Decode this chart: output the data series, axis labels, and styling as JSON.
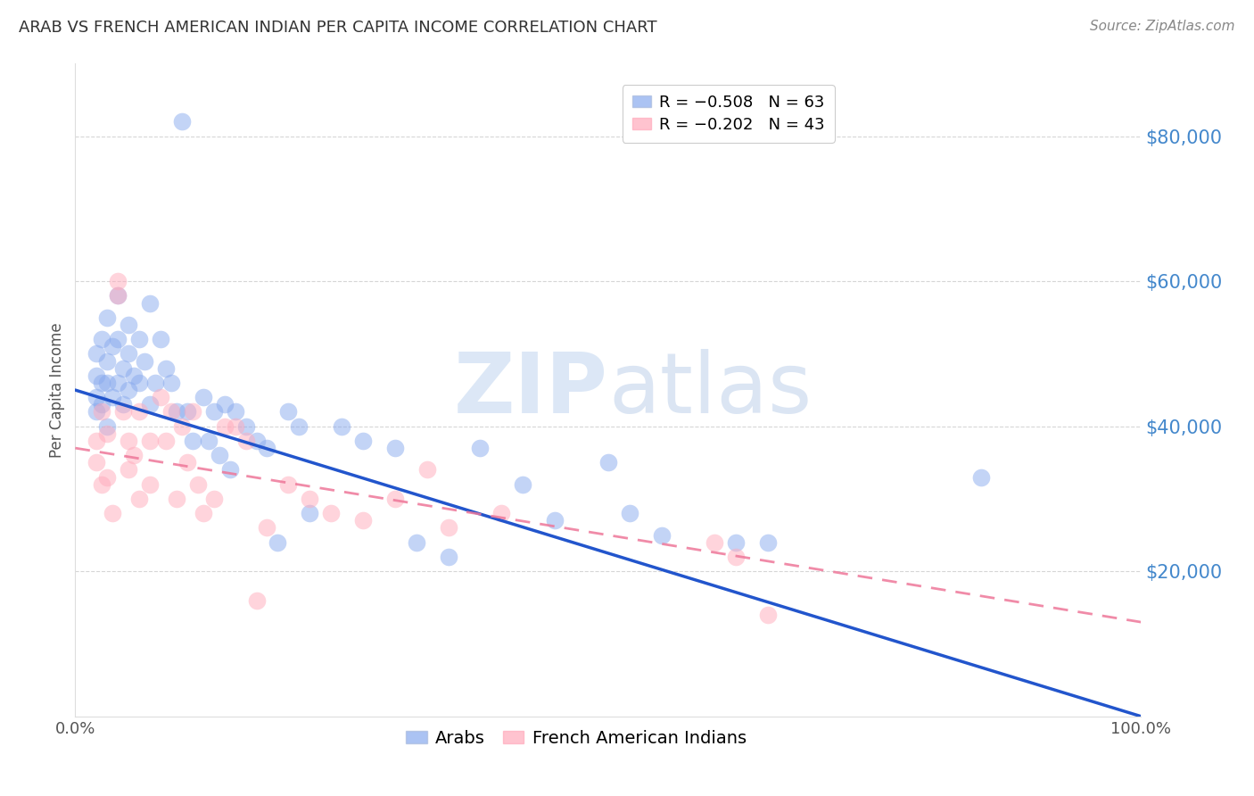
{
  "title": "ARAB VS FRENCH AMERICAN INDIAN PER CAPITA INCOME CORRELATION CHART",
  "source": "Source: ZipAtlas.com",
  "ylabel": "Per Capita Income",
  "ytick_labels": [
    "$20,000",
    "$40,000",
    "$60,000",
    "$80,000"
  ],
  "ytick_values": [
    20000,
    40000,
    60000,
    80000
  ],
  "ylim": [
    0,
    90000
  ],
  "xlim": [
    0.0,
    1.0
  ],
  "watermark_zip": "ZIP",
  "watermark_atlas": "atlas",
  "arab_color": "#88aaee",
  "french_color": "#ffaabb",
  "arab_line_color": "#2255cc",
  "french_line_color": "#ee7799",
  "arab_line_x0": 0.0,
  "arab_line_y0": 45000,
  "arab_line_x1": 1.0,
  "arab_line_y1": 0,
  "french_line_x0": 0.0,
  "french_line_y0": 37000,
  "french_line_x1": 1.0,
  "french_line_y1": 13000,
  "arab_x": [
    0.02,
    0.02,
    0.02,
    0.02,
    0.025,
    0.025,
    0.025,
    0.03,
    0.03,
    0.03,
    0.03,
    0.035,
    0.035,
    0.04,
    0.04,
    0.04,
    0.045,
    0.045,
    0.05,
    0.05,
    0.05,
    0.055,
    0.06,
    0.06,
    0.065,
    0.07,
    0.07,
    0.075,
    0.08,
    0.085,
    0.09,
    0.095,
    0.1,
    0.105,
    0.11,
    0.12,
    0.125,
    0.13,
    0.135,
    0.14,
    0.145,
    0.15,
    0.16,
    0.17,
    0.18,
    0.19,
    0.2,
    0.21,
    0.22,
    0.25,
    0.27,
    0.3,
    0.32,
    0.35,
    0.38,
    0.42,
    0.45,
    0.5,
    0.52,
    0.55,
    0.62,
    0.65,
    0.85
  ],
  "arab_y": [
    50000,
    47000,
    44000,
    42000,
    52000,
    46000,
    43000,
    55000,
    49000,
    46000,
    40000,
    51000,
    44000,
    58000,
    52000,
    46000,
    48000,
    43000,
    54000,
    50000,
    45000,
    47000,
    52000,
    46000,
    49000,
    57000,
    43000,
    46000,
    52000,
    48000,
    46000,
    42000,
    82000,
    42000,
    38000,
    44000,
    38000,
    42000,
    36000,
    43000,
    34000,
    42000,
    40000,
    38000,
    37000,
    24000,
    42000,
    40000,
    28000,
    40000,
    38000,
    37000,
    24000,
    22000,
    37000,
    32000,
    27000,
    35000,
    28000,
    25000,
    24000,
    24000,
    33000
  ],
  "french_x": [
    0.02,
    0.02,
    0.025,
    0.025,
    0.03,
    0.03,
    0.035,
    0.04,
    0.04,
    0.045,
    0.05,
    0.05,
    0.055,
    0.06,
    0.06,
    0.07,
    0.07,
    0.08,
    0.085,
    0.09,
    0.095,
    0.1,
    0.105,
    0.11,
    0.115,
    0.12,
    0.13,
    0.14,
    0.15,
    0.16,
    0.17,
    0.18,
    0.2,
    0.22,
    0.24,
    0.27,
    0.3,
    0.33,
    0.35,
    0.4,
    0.6,
    0.62,
    0.65
  ],
  "french_y": [
    38000,
    35000,
    42000,
    32000,
    39000,
    33000,
    28000,
    60000,
    58000,
    42000,
    38000,
    34000,
    36000,
    42000,
    30000,
    38000,
    32000,
    44000,
    38000,
    42000,
    30000,
    40000,
    35000,
    42000,
    32000,
    28000,
    30000,
    40000,
    40000,
    38000,
    16000,
    26000,
    32000,
    30000,
    28000,
    27000,
    30000,
    34000,
    26000,
    28000,
    24000,
    22000,
    14000
  ]
}
